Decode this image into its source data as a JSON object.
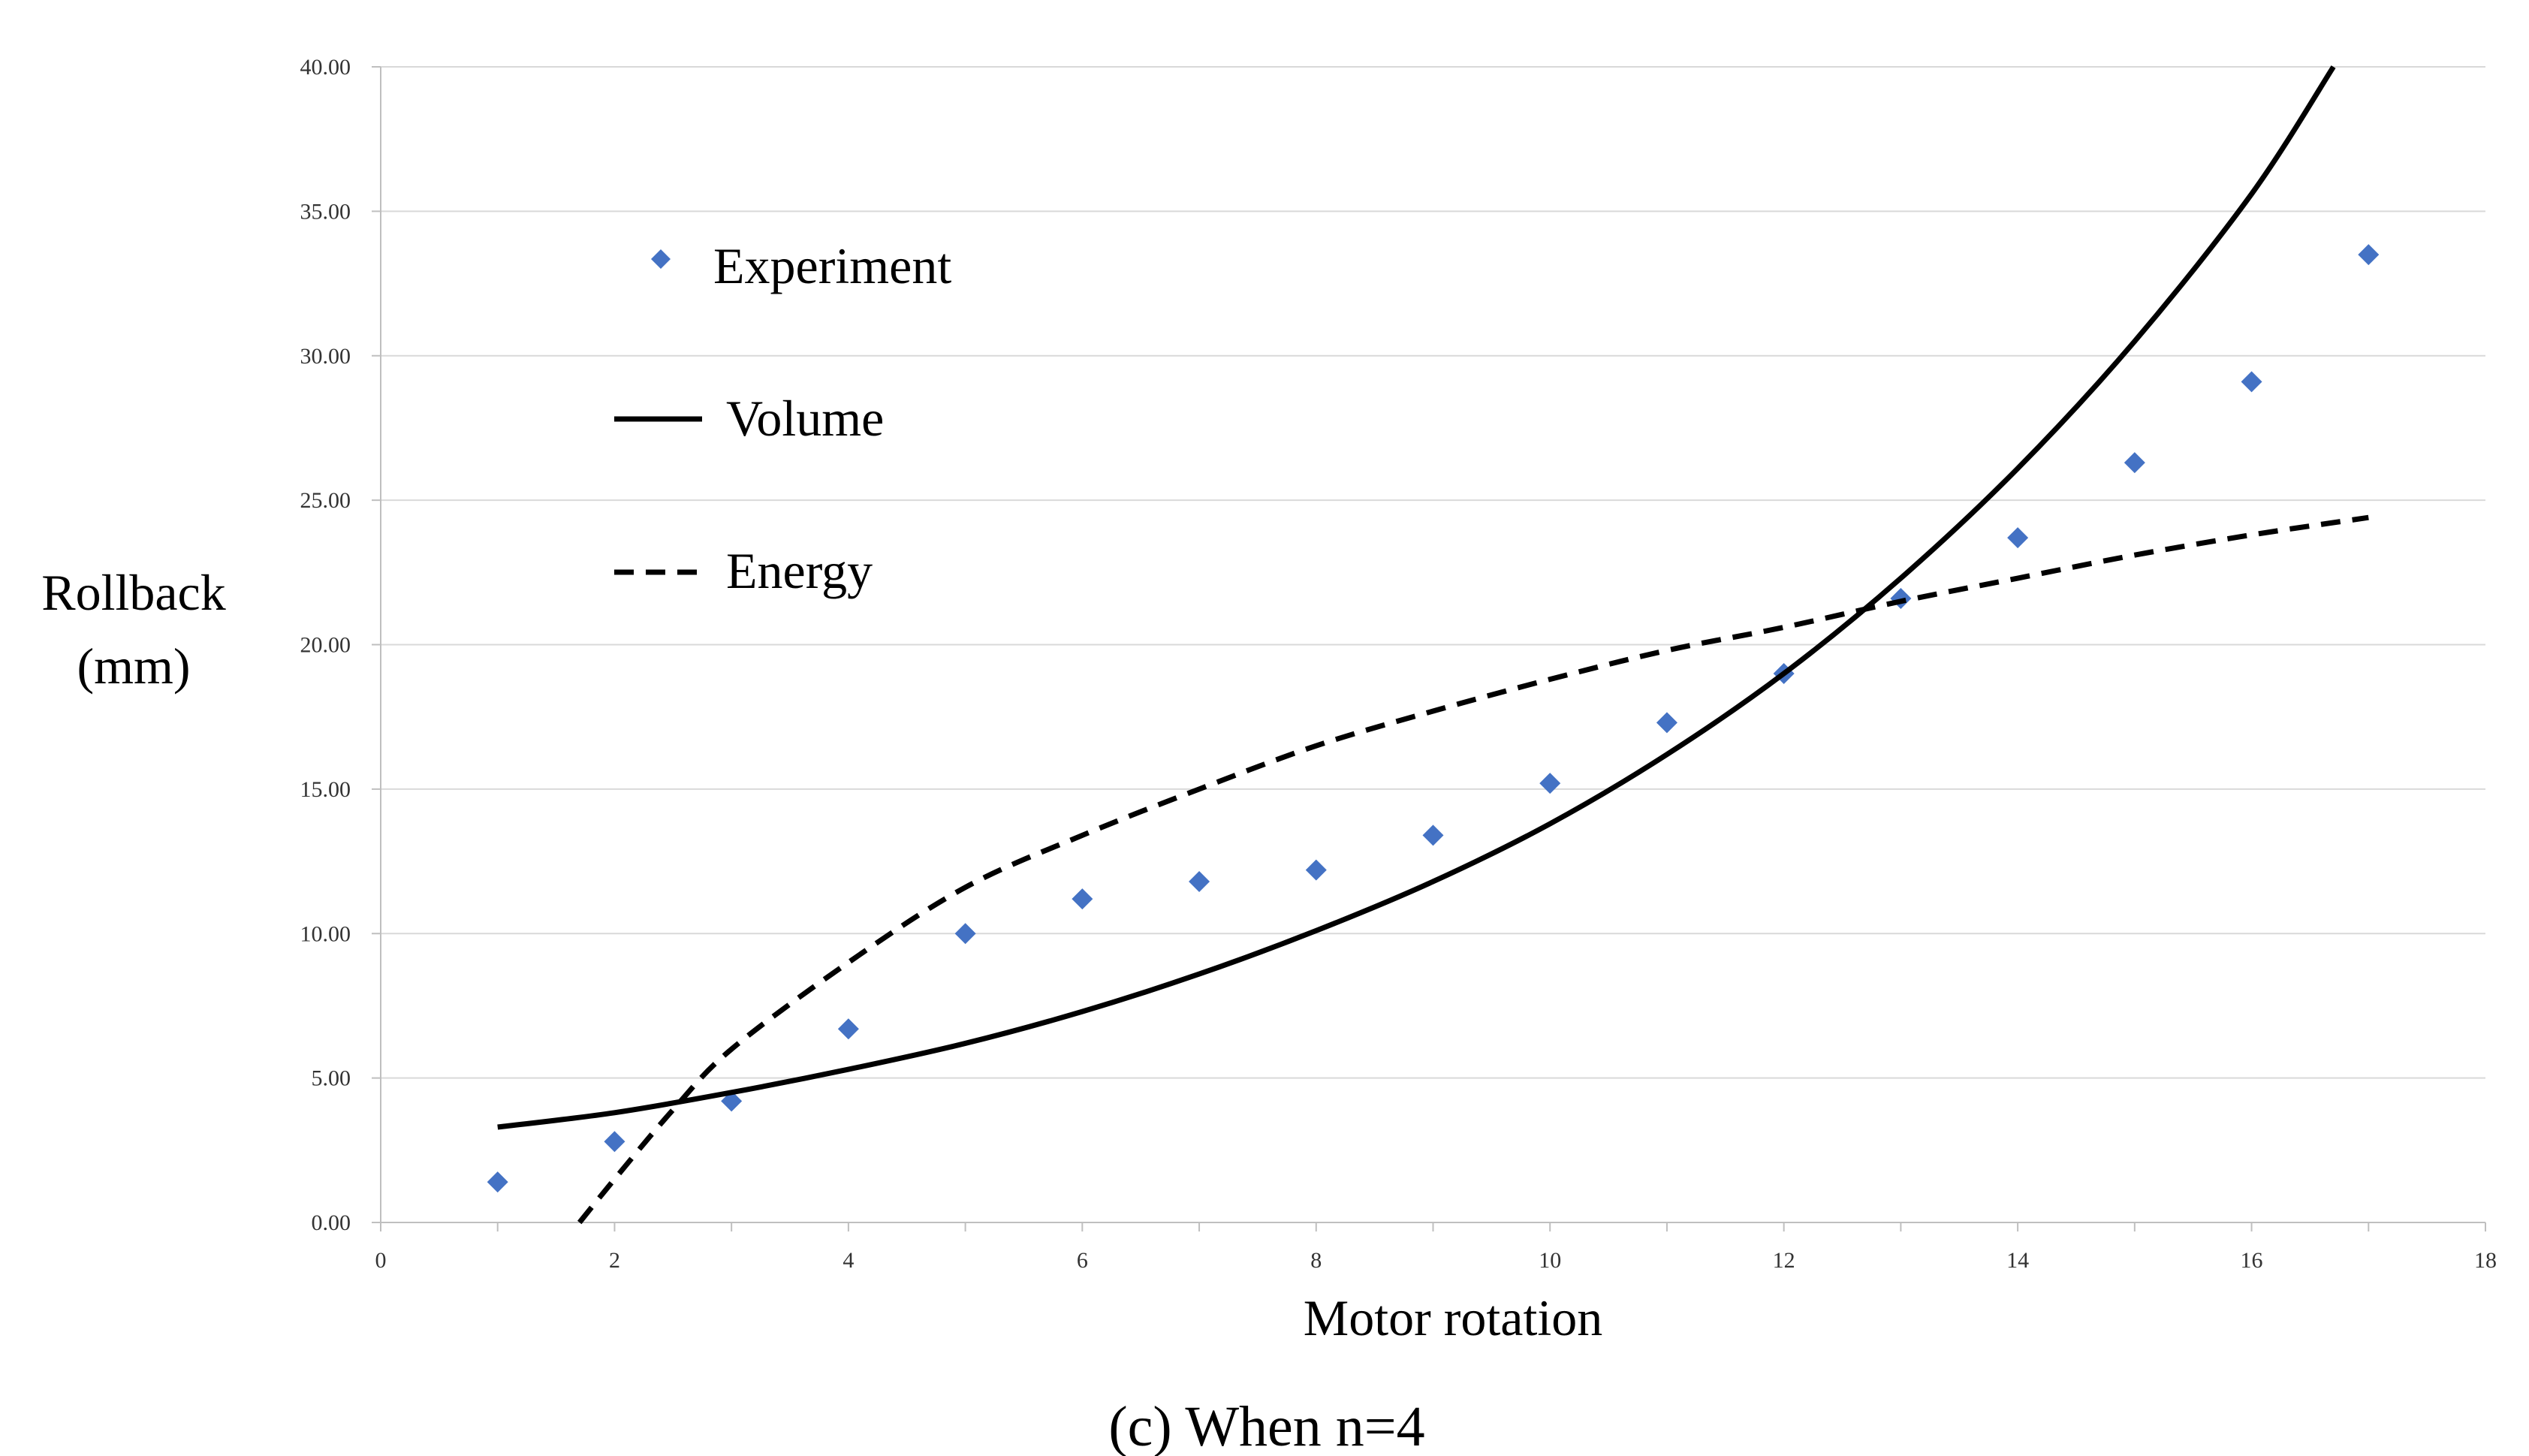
{
  "chart_data": {
    "type": "scatter",
    "title": "",
    "caption": "(c) When n=4",
    "xlabel": "Motor rotation",
    "ylabel_lines": [
      "Rollback",
      "(mm)"
    ],
    "xlim": [
      0,
      18
    ],
    "ylim": [
      0,
      40
    ],
    "x_ticks": [
      0,
      2,
      4,
      6,
      8,
      10,
      12,
      14,
      16,
      18
    ],
    "x_tick_labels": [
      "0",
      "2",
      "4",
      "6",
      "8",
      "10",
      "12",
      "14",
      "16",
      "18"
    ],
    "y_ticks": [
      0,
      5,
      10,
      15,
      20,
      25,
      30,
      35,
      40
    ],
    "y_tick_labels": [
      "0.00",
      "5.00",
      "10.00",
      "15.00",
      "20.00",
      "25.00",
      "30.00",
      "35.00",
      "40.00"
    ],
    "grid": "horizontal",
    "legend_position": "top-left",
    "series": [
      {
        "name": "Experiment",
        "kind": "markers",
        "marker": "diamond",
        "color": "#4472C4",
        "points": [
          [
            1,
            1.4
          ],
          [
            2,
            2.8
          ],
          [
            3,
            4.2
          ],
          [
            4,
            6.7
          ],
          [
            5,
            10.0
          ],
          [
            6,
            11.2
          ],
          [
            7,
            11.8
          ],
          [
            8,
            12.2
          ],
          [
            9,
            13.4
          ],
          [
            10,
            15.2
          ],
          [
            11,
            17.3
          ],
          [
            12,
            19.0
          ],
          [
            13,
            21.6
          ],
          [
            14,
            23.7
          ],
          [
            15,
            26.3
          ],
          [
            16,
            29.1
          ],
          [
            17,
            33.5
          ]
        ]
      },
      {
        "name": "Volume",
        "kind": "line",
        "style": "solid",
        "color": "#000000",
        "points": [
          [
            1,
            3.3
          ],
          [
            2,
            3.8
          ],
          [
            3,
            4.5
          ],
          [
            4,
            5.3
          ],
          [
            5,
            6.2
          ],
          [
            6,
            7.3
          ],
          [
            7,
            8.6
          ],
          [
            8,
            10.1
          ],
          [
            9,
            11.8
          ],
          [
            10,
            13.8
          ],
          [
            11,
            16.2
          ],
          [
            12,
            19.0
          ],
          [
            13,
            22.3
          ],
          [
            14,
            26.1
          ],
          [
            15,
            30.5
          ],
          [
            16,
            35.6
          ],
          [
            16.7,
            40.0
          ]
        ]
      },
      {
        "name": "Energy",
        "kind": "line",
        "style": "dashed",
        "color": "#000000",
        "points": [
          [
            1.7,
            0.0
          ],
          [
            2,
            1.5
          ],
          [
            2.5,
            3.9
          ],
          [
            3,
            6.0
          ],
          [
            4,
            9.0
          ],
          [
            5,
            11.6
          ],
          [
            6,
            13.4
          ],
          [
            7,
            15.0
          ],
          [
            8,
            16.5
          ],
          [
            9,
            17.7
          ],
          [
            10,
            18.8
          ],
          [
            11,
            19.8
          ],
          [
            12,
            20.6
          ],
          [
            13,
            21.5
          ],
          [
            14,
            22.3
          ],
          [
            15,
            23.1
          ],
          [
            16,
            23.8
          ],
          [
            17,
            24.4
          ]
        ]
      }
    ]
  }
}
